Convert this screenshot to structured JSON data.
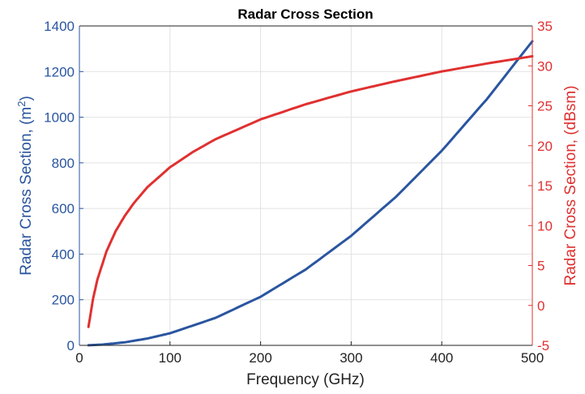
{
  "chart_data": {
    "type": "line",
    "title": "Radar Cross Section",
    "xlabel": "Frequency (GHz)",
    "ylabel_left": "Radar Cross Section, (m",
    "ylabel_left_sup": "2",
    "ylabel_left_close": ")",
    "ylabel_right": "Radar Cross Section, (dBsm)",
    "xlim": [
      0,
      500
    ],
    "ylim_left": [
      0,
      1400
    ],
    "ylim_right": [
      -5,
      35
    ],
    "x_ticks": [
      "0",
      "100",
      "200",
      "300",
      "400",
      "500"
    ],
    "y_ticks_left": [
      "0",
      "200",
      "400",
      "600",
      "800",
      "1000",
      "1200",
      "1400"
    ],
    "y_ticks_right": [
      "-5",
      "0",
      "5",
      "10",
      "15",
      "20",
      "25",
      "30",
      "35"
    ],
    "grid": true,
    "series": [
      {
        "axis": "left",
        "color": "#2a55a0",
        "x": [
          10,
          25,
          50,
          75,
          100,
          150,
          200,
          250,
          300,
          350,
          400,
          450,
          500
        ],
        "y": [
          0.53,
          3.3,
          13.3,
          30,
          53,
          120,
          213,
          333,
          480,
          653,
          853,
          1080,
          1333
        ]
      },
      {
        "axis": "right",
        "color": "#e03030",
        "x": [
          10,
          15,
          20,
          30,
          40,
          50,
          60,
          75,
          100,
          125,
          150,
          200,
          250,
          300,
          350,
          400,
          450,
          500
        ],
        "y": [
          -2.7,
          0.8,
          3.3,
          6.8,
          9.3,
          11.2,
          12.8,
          14.8,
          17.3,
          19.2,
          20.8,
          23.3,
          25.2,
          26.8,
          28.1,
          29.3,
          30.3,
          31.2
        ]
      }
    ]
  }
}
